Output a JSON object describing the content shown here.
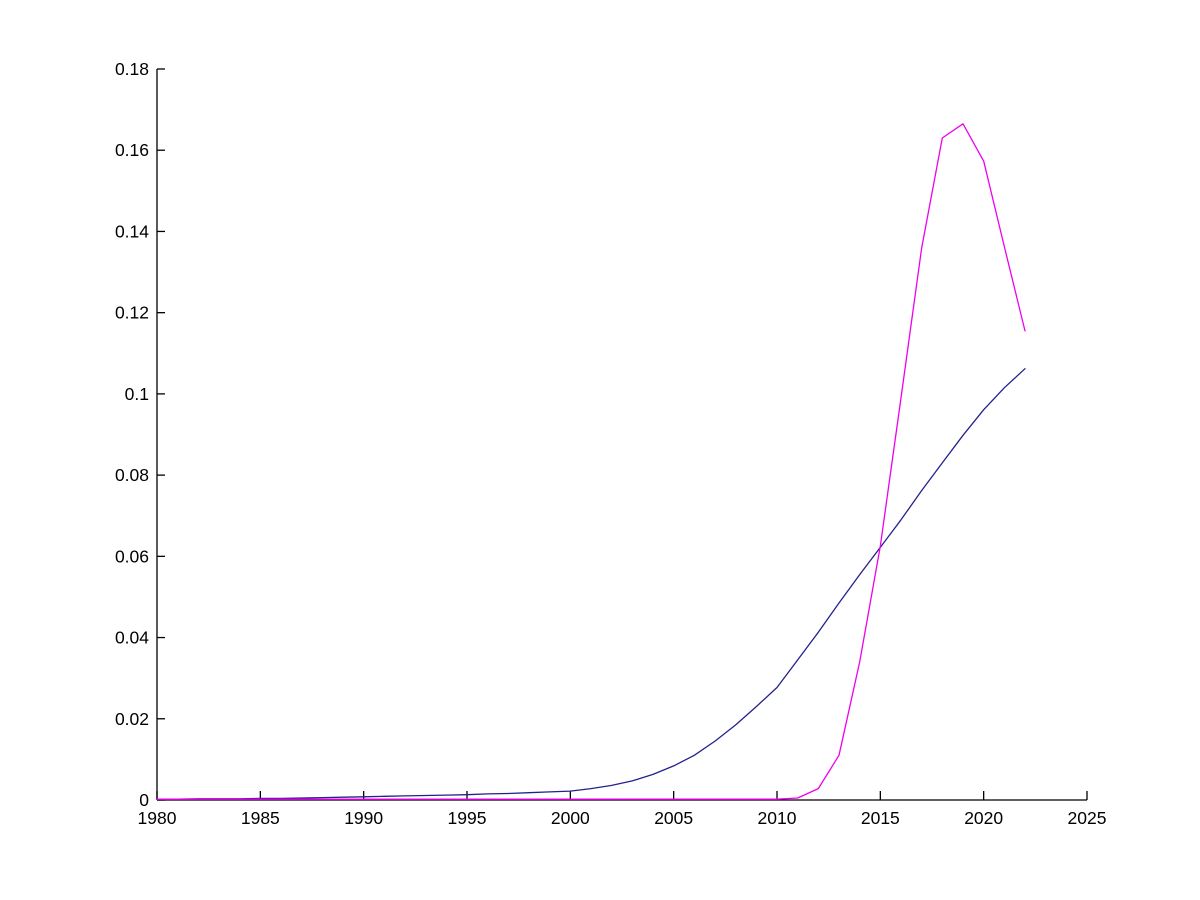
{
  "chart_data": {
    "type": "line",
    "title": "",
    "xlabel": "",
    "ylabel": "",
    "grid": false,
    "legend_position": "none",
    "xlim": [
      1980,
      2025
    ],
    "ylim": [
      0,
      0.18
    ],
    "x_ticks": [
      1980,
      1985,
      1990,
      1995,
      2000,
      2005,
      2010,
      2015,
      2020,
      2025
    ],
    "x_tick_labels": [
      "1980",
      "1985",
      "1990",
      "1995",
      "2000",
      "2005",
      "2010",
      "2015",
      "2020",
      "2025"
    ],
    "y_ticks": [
      0,
      0.02,
      0.04,
      0.06,
      0.08,
      0.1,
      0.12,
      0.14,
      0.16,
      0.18
    ],
    "y_tick_labels": [
      "0",
      "0.02",
      "0.04",
      "0.06",
      "0.08",
      "0.1",
      "0.12",
      "0.14",
      "0.16",
      "0.18"
    ],
    "x": [
      1980,
      1981,
      1982,
      1983,
      1984,
      1985,
      1986,
      1987,
      1988,
      1989,
      1990,
      1991,
      1992,
      1993,
      1994,
      1995,
      1996,
      1997,
      1998,
      1999,
      2000,
      2001,
      2002,
      2003,
      2004,
      2005,
      2006,
      2007,
      2008,
      2009,
      2010,
      2011,
      2012,
      2013,
      2014,
      2015,
      2016,
      2017,
      2018,
      2019,
      2020,
      2021,
      2022
    ],
    "series": [
      {
        "name": "dark-blue-smooth-growth-curve",
        "color": "#22228E",
        "values": [
          0.0002,
          0.0002,
          0.0003,
          0.0003,
          0.0003,
          0.0004,
          0.0004,
          0.0005,
          0.0006,
          0.0007,
          0.0008,
          0.0009,
          0.001,
          0.0011,
          0.0012,
          0.0013,
          0.0015,
          0.0016,
          0.0018,
          0.002,
          0.0022,
          0.0028,
          0.0036,
          0.0047,
          0.0063,
          0.0084,
          0.011,
          0.0145,
          0.0185,
          0.023,
          0.0277,
          0.0345,
          0.0413,
          0.0485,
          0.0555,
          0.0622,
          0.069,
          0.0762,
          0.083,
          0.0898,
          0.0961,
          0.1015,
          0.1062
        ]
      },
      {
        "name": "magenta-spike-curve",
        "color": "#EE00EE",
        "values": [
          0.0002,
          0.0002,
          0.0002,
          0.0002,
          0.0002,
          0.0002,
          0.0002,
          0.0002,
          0.0002,
          0.0002,
          0.0002,
          0.0002,
          0.0002,
          0.0002,
          0.0002,
          0.0002,
          0.0002,
          0.0002,
          0.0002,
          0.0002,
          0.0002,
          0.0002,
          0.0002,
          0.0002,
          0.0002,
          0.0002,
          0.0002,
          0.0002,
          0.0002,
          0.0002,
          0.0002,
          0.0005,
          0.0028,
          0.011,
          0.034,
          0.0625,
          0.099,
          0.136,
          0.163,
          0.1665,
          0.1573,
          0.1363,
          0.1155
        ]
      }
    ],
    "axis_color": "#000000",
    "background_color": "#ffffff"
  }
}
